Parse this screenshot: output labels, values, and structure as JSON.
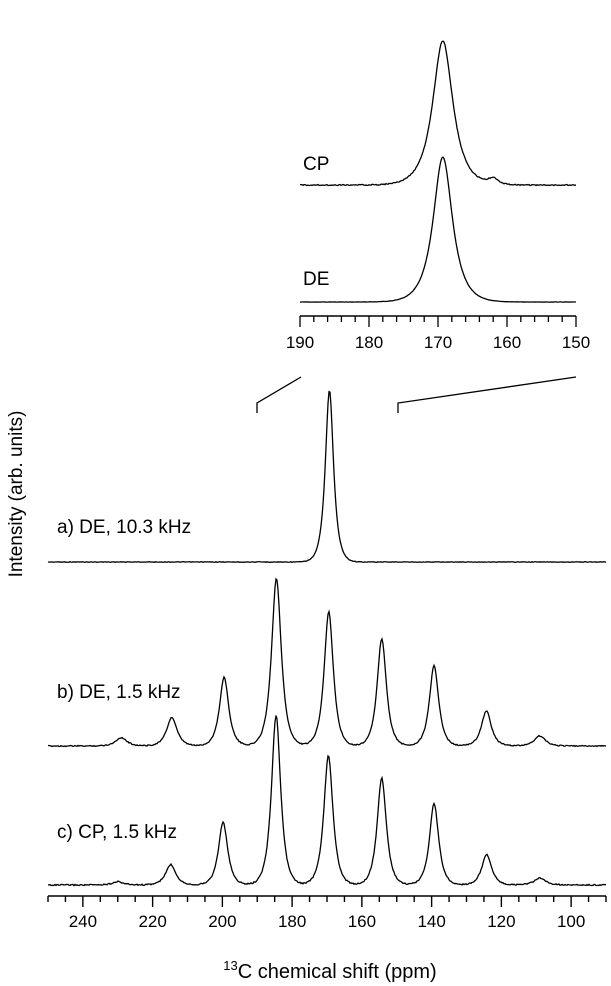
{
  "chart_data": [
    {
      "type": "line",
      "xlabel_sup": "13",
      "xlabel": "C chemical shift (ppm)",
      "ylabel": "Intensity (arb. units)",
      "xlim": [
        250,
        90
      ],
      "x_ticks": [
        240,
        220,
        200,
        180,
        160,
        140,
        120,
        100
      ],
      "series": [
        {
          "name": "a) DE, 10.3 kHz",
          "peaks": [
            {
              "x": 169.3,
              "height": 1.0,
              "width": 1.6
            }
          ]
        },
        {
          "name": "b) DE, 1.5 kHz",
          "peaks": [
            {
              "x": 229.0,
              "height": 0.05,
              "width": 2.2
            },
            {
              "x": 214.5,
              "height": 0.17,
              "width": 2.0
            },
            {
              "x": 199.5,
              "height": 0.41,
              "width": 1.8
            },
            {
              "x": 184.5,
              "height": 1.0,
              "width": 1.9
            },
            {
              "x": 169.5,
              "height": 0.8,
              "width": 1.8
            },
            {
              "x": 154.3,
              "height": 0.64,
              "width": 1.8
            },
            {
              "x": 139.3,
              "height": 0.48,
              "width": 1.8
            },
            {
              "x": 124.3,
              "height": 0.21,
              "width": 1.9
            },
            {
              "x": 109.0,
              "height": 0.06,
              "width": 2.2
            }
          ]
        },
        {
          "name": "c) CP, 1.5 kHz",
          "peaks": [
            {
              "x": 230.0,
              "height": 0.02,
              "width": 2.2
            },
            {
              "x": 214.8,
              "height": 0.12,
              "width": 2.0
            },
            {
              "x": 199.8,
              "height": 0.37,
              "width": 1.8
            },
            {
              "x": 184.6,
              "height": 1.0,
              "width": 1.8
            },
            {
              "x": 169.6,
              "height": 0.76,
              "width": 1.8
            },
            {
              "x": 154.3,
              "height": 0.63,
              "width": 1.8
            },
            {
              "x": 139.3,
              "height": 0.48,
              "width": 1.8
            },
            {
              "x": 124.2,
              "height": 0.18,
              "width": 1.9
            },
            {
              "x": 109.0,
              "height": 0.04,
              "width": 2.2
            }
          ]
        }
      ]
    },
    {
      "type": "line",
      "xlim": [
        190,
        150
      ],
      "x_ticks": [
        190,
        180,
        170,
        160,
        150
      ],
      "series": [
        {
          "name": "CP",
          "peaks": [
            {
              "x": 169.3,
              "height": 1.0,
              "width": 2.0
            },
            {
              "x": 162.0,
              "height": 0.04,
              "width": 1.0
            }
          ]
        },
        {
          "name": "DE",
          "peaks": [
            {
              "x": 169.3,
              "height": 1.0,
              "width": 1.9
            }
          ]
        }
      ]
    }
  ]
}
